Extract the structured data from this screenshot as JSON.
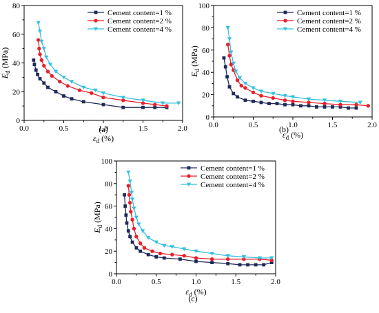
{
  "colors": {
    "cement_1": "#1f2a5a",
    "cement_2": "#e8202a",
    "cement_4": "#35bfe0",
    "axis": "#000000"
  },
  "chart_data": [
    {
      "panel_label": "(a)",
      "type": "line",
      "xlabel_symbol": "ε",
      "xlabel_sub": "d",
      "xlabel_unit": " (%)",
      "ylabel_symbol": "E",
      "ylabel_sub": "d",
      "ylabel_unit": " (MPa)",
      "xlim": [
        0.0,
        2.0
      ],
      "ylim": [
        0,
        80
      ],
      "xticks": [
        0.0,
        0.5,
        1.0,
        1.5,
        2.0
      ],
      "yticks": [
        0,
        20,
        40,
        60,
        80
      ],
      "legend_position": "top-right",
      "series": [
        {
          "name": "Cement content=1 %",
          "color": "#1f2a5a",
          "marker": "square",
          "x": [
            0.12,
            0.13,
            0.15,
            0.17,
            0.2,
            0.25,
            0.3,
            0.4,
            0.5,
            0.6,
            0.75,
            1.0,
            1.25,
            1.5,
            1.65,
            1.8
          ],
          "y": [
            42,
            39,
            35,
            32,
            29,
            26,
            23,
            20,
            17,
            15,
            13,
            11,
            9,
            9,
            9,
            9
          ]
        },
        {
          "name": "Cement content=2 %",
          "color": "#e8202a",
          "marker": "circle",
          "x": [
            0.18,
            0.19,
            0.2,
            0.22,
            0.25,
            0.3,
            0.35,
            0.45,
            0.55,
            0.7,
            0.85,
            1.0,
            1.25,
            1.5,
            1.65,
            1.8
          ],
          "y": [
            56,
            50,
            46,
            42,
            38,
            34,
            31,
            27,
            24,
            21,
            19,
            16,
            14,
            12,
            11,
            10
          ]
        },
        {
          "name": "Cement content=4 %",
          "color": "#35bfe0",
          "marker": "triangle",
          "x": [
            0.18,
            0.2,
            0.22,
            0.25,
            0.28,
            0.33,
            0.4,
            0.5,
            0.6,
            0.75,
            0.9,
            1.0,
            1.25,
            1.5,
            1.75,
            1.95
          ],
          "y": [
            68,
            62,
            55,
            50,
            44,
            39,
            34,
            30,
            27,
            23,
            21,
            19,
            16,
            14,
            12,
            12
          ]
        }
      ]
    },
    {
      "panel_label": "(b)",
      "type": "line",
      "xlabel_symbol": "ε",
      "xlabel_sub": "d",
      "xlabel_unit": " (%)",
      "ylabel_symbol": "E",
      "ylabel_sub": "d",
      "ylabel_unit": " (MPa)",
      "xlim": [
        0.0,
        2.0
      ],
      "ylim": [
        0,
        100
      ],
      "xticks": [
        0.0,
        0.5,
        1.0,
        1.5,
        2.0
      ],
      "yticks": [
        0,
        20,
        40,
        60,
        80,
        100
      ],
      "legend_position": "top-right",
      "series": [
        {
          "name": "Cement content=1 %",
          "color": "#1f2a5a",
          "marker": "square",
          "x": [
            0.13,
            0.15,
            0.17,
            0.2,
            0.25,
            0.3,
            0.4,
            0.5,
            0.6,
            0.7,
            0.8,
            0.9,
            1.0,
            1.1,
            1.2,
            1.3,
            1.4,
            1.5,
            1.6,
            1.7,
            1.8
          ],
          "y": [
            53,
            45,
            36,
            27,
            21,
            18,
            15,
            14,
            13,
            12,
            12,
            11,
            11,
            10,
            10,
            9,
            9,
            9,
            9,
            8,
            8
          ]
        },
        {
          "name": "Cement content=2 %",
          "color": "#e8202a",
          "marker": "circle",
          "x": [
            0.18,
            0.2,
            0.22,
            0.25,
            0.3,
            0.35,
            0.4,
            0.5,
            0.6,
            0.75,
            0.9,
            1.0,
            1.2,
            1.4,
            1.6,
            1.8,
            1.95
          ],
          "y": [
            65,
            55,
            47,
            42,
            33,
            28,
            26,
            22,
            19,
            17,
            15,
            14,
            13,
            12,
            11,
            11,
            10
          ]
        },
        {
          "name": "Cement content=4 %",
          "color": "#35bfe0",
          "marker": "triangle",
          "x": [
            0.18,
            0.2,
            0.22,
            0.25,
            0.28,
            0.33,
            0.4,
            0.5,
            0.6,
            0.75,
            0.9,
            1.0,
            1.2,
            1.4,
            1.6,
            1.85
          ],
          "y": [
            80,
            70,
            58,
            48,
            41,
            35,
            30,
            26,
            23,
            21,
            19,
            18,
            16,
            15,
            14,
            13
          ]
        }
      ]
    },
    {
      "panel_label": "(c)",
      "type": "line",
      "xlabel_symbol": "ε",
      "xlabel_sub": "d",
      "xlabel_unit": " (%)",
      "ylabel_symbol": "E",
      "ylabel_sub": "d",
      "ylabel_unit": " (MPa)",
      "xlim": [
        0.0,
        2.0
      ],
      "ylim": [
        0,
        100
      ],
      "xticks": [
        0.0,
        0.5,
        1.0,
        1.5,
        2.0
      ],
      "yticks": [
        0,
        20,
        40,
        60,
        80,
        100
      ],
      "legend_position": "top-right",
      "series": [
        {
          "name": "Cement content=1 %",
          "color": "#1f2a5a",
          "marker": "square",
          "x": [
            0.1,
            0.11,
            0.12,
            0.13,
            0.15,
            0.17,
            0.2,
            0.25,
            0.3,
            0.4,
            0.5,
            0.6,
            0.8,
            1.0,
            1.2,
            1.4,
            1.55,
            1.65,
            1.75,
            1.85,
            1.95
          ],
          "y": [
            70,
            60,
            52,
            45,
            38,
            33,
            28,
            23,
            20,
            17,
            15,
            14,
            13,
            11,
            10,
            9,
            8,
            8,
            8,
            8,
            10
          ]
        },
        {
          "name": "Cement content=2 %",
          "color": "#e8202a",
          "marker": "circle",
          "x": [
            0.15,
            0.16,
            0.17,
            0.18,
            0.2,
            0.22,
            0.25,
            0.3,
            0.35,
            0.45,
            0.55,
            0.7,
            0.85,
            1.0,
            1.2,
            1.4,
            1.6,
            1.8,
            1.95
          ],
          "y": [
            78,
            70,
            63,
            55,
            48,
            40,
            33,
            27,
            23,
            20,
            18,
            17,
            16,
            14,
            13,
            13,
            13,
            13,
            12
          ]
        },
        {
          "name": "Cement content=4 %",
          "color": "#35bfe0",
          "marker": "triangle",
          "x": [
            0.15,
            0.17,
            0.19,
            0.2,
            0.22,
            0.25,
            0.28,
            0.33,
            0.4,
            0.5,
            0.6,
            0.7,
            0.85,
            1.0,
            1.2,
            1.4,
            1.6,
            1.8,
            1.95
          ],
          "y": [
            90,
            82,
            72,
            66,
            58,
            50,
            44,
            38,
            32,
            28,
            25,
            24,
            22,
            20,
            18,
            16,
            15,
            14,
            14
          ]
        }
      ]
    }
  ]
}
